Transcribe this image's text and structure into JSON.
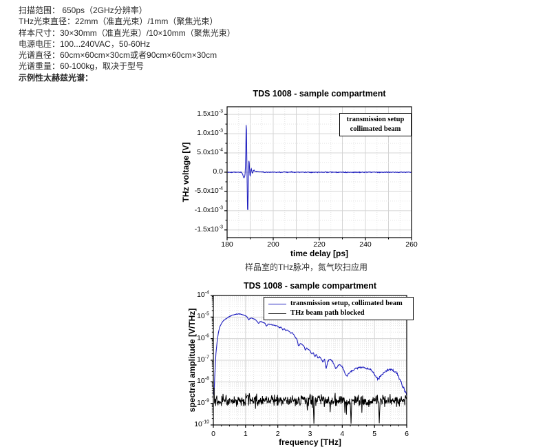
{
  "specs": {
    "lines": [
      {
        "text": "扫描范围： 650ps（2GHz分辨率）",
        "bold": false
      },
      {
        "text": "THz光束直径：22mm（准直光束）/1mm（聚焦光束）",
        "bold": false
      },
      {
        "text": "样本尺寸：30×30mm（准直光束）/10×10mm（聚焦光束）",
        "bold": false
      },
      {
        "text": "电源电压：100...240VAC，50-60Hz",
        "bold": false
      },
      {
        "text": "光谱直径：60cm×60cm×30cm或者90cm×60cm×30cm",
        "bold": false
      },
      {
        "text": "光谱重量：60-100kg，取决于型号",
        "bold": false
      },
      {
        "text": "示例性太赫兹光谱：",
        "bold": true
      }
    ]
  },
  "captions": {
    "chart1": "样品室的THz脉冲，氮气吹扫应用"
  },
  "colors": {
    "trace_blue": "#2121bf",
    "trace_black": "#000000",
    "grid_major": "#d4d4d4",
    "grid_minor": "#e4e4e4",
    "axis": "#000000",
    "text": "#262626"
  },
  "noise_seed": 1337,
  "chart_data": [
    {
      "id": "pulse",
      "type": "line",
      "title": "TDS 1008 - sample compartment",
      "xlabel": "time delay [ps]",
      "ylabel": "THz voltage [V]",
      "xlim": [
        180,
        260
      ],
      "ylim": [
        -0.0017,
        0.0017
      ],
      "grid": true,
      "legend": {
        "position": "top-right",
        "lines": [
          "transmission setup",
          "collimated beam"
        ]
      },
      "x_ticks": [
        180,
        200,
        220,
        240,
        260
      ],
      "y_ticks": [
        {
          "label": "1.5x10^-3",
          "v": 0.0015
        },
        {
          "label": "1.0x10^-3",
          "v": 0.001
        },
        {
          "label": "5.0x10^-4",
          "v": 0.0005
        },
        {
          "label": "0.0",
          "v": 0
        },
        {
          "label": "-5.0x10^-4",
          "v": -0.0005
        },
        {
          "label": "-1.0x10^-3",
          "v": -0.001
        },
        {
          "label": "-1.5x10^-3",
          "v": -0.0015
        }
      ],
      "series": [
        {
          "name": "transmission setup, collimated beam",
          "color": "#2121bf",
          "baseline_noise_v": 1e-05,
          "points": [
            [
              180,
              0
            ],
            [
              186,
              0
            ],
            [
              186.6,
              -3e-05
            ],
            [
              187.0,
              -0.0001
            ],
            [
              187.3,
              -0.00015
            ],
            [
              187.6,
              -0.00012
            ],
            [
              187.85,
              -2e-05
            ],
            [
              188.0,
              0.0002
            ],
            [
              188.15,
              0.0007
            ],
            [
              188.3,
              0.00148
            ],
            [
              188.45,
              0.0009
            ],
            [
              188.6,
              0.0001
            ],
            [
              188.75,
              -0.0005
            ],
            [
              188.9,
              -0.00118
            ],
            [
              189.05,
              -0.0009
            ],
            [
              189.2,
              -0.0003
            ],
            [
              189.35,
              0.0001
            ],
            [
              189.5,
              0.00038
            ],
            [
              189.65,
              0.0002
            ],
            [
              189.8,
              2e-05
            ],
            [
              189.95,
              -0.00012
            ],
            [
              190.1,
              -8e-05
            ],
            [
              190.3,
              6e-05
            ],
            [
              190.5,
              9e-05
            ],
            [
              190.7,
              3e-05
            ],
            [
              191.0,
              -4e-05
            ],
            [
              191.4,
              5e-05
            ],
            [
              191.8,
              4e-05
            ],
            [
              192.3,
              2e-05
            ],
            [
              193,
              2e-05
            ],
            [
              194,
              1e-05
            ],
            [
              196,
              0
            ],
            [
              260,
              0
            ]
          ]
        }
      ]
    },
    {
      "id": "spectrum",
      "type": "line",
      "log_y": true,
      "title": "TDS 1008 - sample compartment",
      "xlabel": "frequency [THz]",
      "ylabel": "spectral amplitude [V/THz]",
      "xlim": [
        0,
        6
      ],
      "ylim_exp": [
        -4,
        -10
      ],
      "grid": true,
      "legend": {
        "position": "top-center-right"
      },
      "x_ticks": [
        0,
        1,
        2,
        3,
        4,
        5,
        6
      ],
      "y_ticks": [
        {
          "label": "10^-4",
          "exp": -4
        },
        {
          "label": "10^-5",
          "exp": -5
        },
        {
          "label": "10^-6",
          "exp": -6
        },
        {
          "label": "10^-7",
          "exp": -7
        },
        {
          "label": "10^-8",
          "exp": -8
        },
        {
          "label": "10^-9",
          "exp": -9
        },
        {
          "label": "10^-10",
          "exp": -10
        }
      ],
      "series": [
        {
          "name": "transmission setup, collimated beam",
          "color": "#2121bf",
          "jitter": {
            "base": 0.012,
            "slope": 0.05
          },
          "points": [
            [
              0.02,
              2.5e-09
            ],
            [
              0.05,
              3e-08
            ],
            [
              0.08,
              2e-07
            ],
            [
              0.12,
              8e-07
            ],
            [
              0.16,
              2e-06
            ],
            [
              0.2,
              3.5e-06
            ],
            [
              0.25,
              5e-06
            ],
            [
              0.3,
              6.5e-06
            ],
            [
              0.35,
              7.5e-06
            ],
            [
              0.4,
              8.5e-06
            ],
            [
              0.5,
              1.05e-05
            ],
            [
              0.6,
              1.25e-05
            ],
            [
              0.7,
              1.35e-05
            ],
            [
              0.8,
              1.4e-05
            ],
            [
              0.9,
              1.32e-05
            ],
            [
              1.0,
              1.15e-05
            ],
            [
              1.05,
              1e-05
            ],
            [
              1.1,
              7.5e-06
            ],
            [
              1.15,
              9e-06
            ],
            [
              1.2,
              8.8e-06
            ],
            [
              1.3,
              7.8e-06
            ],
            [
              1.35,
              6.5e-06
            ],
            [
              1.4,
              5e-06
            ],
            [
              1.45,
              6.2e-06
            ],
            [
              1.5,
              6e-06
            ],
            [
              1.6,
              5.2e-06
            ],
            [
              1.65,
              3.8e-06
            ],
            [
              1.7,
              4.8e-06
            ],
            [
              1.8,
              4.4e-06
            ],
            [
              1.9,
              4.1e-06
            ],
            [
              2.0,
              3.8e-06
            ],
            [
              2.05,
              3.2e-06
            ],
            [
              2.1,
              3.4e-06
            ],
            [
              2.15,
              2.6e-06
            ],
            [
              2.2,
              2.9e-06
            ],
            [
              2.25,
              2.4e-06
            ],
            [
              2.3,
              2.5e-06
            ],
            [
              2.35,
              2.2e-06
            ],
            [
              2.4,
              1.8e-06
            ],
            [
              2.45,
              1.9e-06
            ],
            [
              2.5,
              1.5e-06
            ],
            [
              2.55,
              1.1e-06
            ],
            [
              2.6,
              9e-07
            ],
            [
              2.64,
              4.5e-07
            ],
            [
              2.7,
              6e-07
            ],
            [
              2.8,
              4.8e-07
            ],
            [
              2.85,
              3e-07
            ],
            [
              2.9,
              3.6e-07
            ],
            [
              3.0,
              2.8e-07
            ],
            [
              3.05,
              2e-07
            ],
            [
              3.1,
              2.2e-07
            ],
            [
              3.15,
              1.5e-07
            ],
            [
              3.2,
              1.8e-07
            ],
            [
              3.25,
              1.2e-07
            ],
            [
              3.3,
              1.5e-07
            ],
            [
              3.4,
              8e-08
            ],
            [
              3.45,
              1.2e-07
            ],
            [
              3.5,
              4e-08
            ],
            [
              3.55,
              9e-08
            ],
            [
              3.6,
              1.1e-07
            ],
            [
              3.7,
              9e-08
            ],
            [
              3.8,
              4e-08
            ],
            [
              3.9,
              6.5e-08
            ],
            [
              4.0,
              5e-08
            ],
            [
              4.1,
              2.2e-08
            ],
            [
              4.15,
              1.8e-08
            ],
            [
              4.2,
              2.5e-08
            ],
            [
              4.3,
              3.2e-08
            ],
            [
              4.4,
              4e-08
            ],
            [
              4.5,
              4.5e-08
            ],
            [
              4.6,
              4.8e-08
            ],
            [
              4.7,
              4.5e-08
            ],
            [
              4.75,
              3.8e-08
            ],
            [
              4.8,
              4.2e-08
            ],
            [
              4.9,
              3.5e-08
            ],
            [
              5.0,
              2.2e-08
            ],
            [
              5.1,
              1.4e-08
            ],
            [
              5.2,
              1.8e-08
            ],
            [
              5.3,
              2.8e-08
            ],
            [
              5.4,
              3.5e-08
            ],
            [
              5.5,
              3.8e-08
            ],
            [
              5.6,
              3.2e-08
            ],
            [
              5.7,
              2.5e-08
            ],
            [
              5.8,
              1.2e-08
            ],
            [
              5.9,
              5e-09
            ],
            [
              6.0,
              2.5e-09
            ]
          ]
        },
        {
          "name": "THz beam path blocked",
          "color": "#000000",
          "noise": {
            "level": 1.4e-09,
            "sigma_log10": 0.27,
            "clamp": [
              1.15e-10,
              5.5e-09
            ],
            "start_spike": {
              "f_below": 0.03,
              "value": 5e-09
            },
            "down_spikes": [
              [
                3.12,
                1.15e-10
              ],
              [
                4.27,
                1.1e-10
              ],
              [
                5.15,
                1.2e-10
              ]
            ]
          }
        }
      ]
    }
  ]
}
